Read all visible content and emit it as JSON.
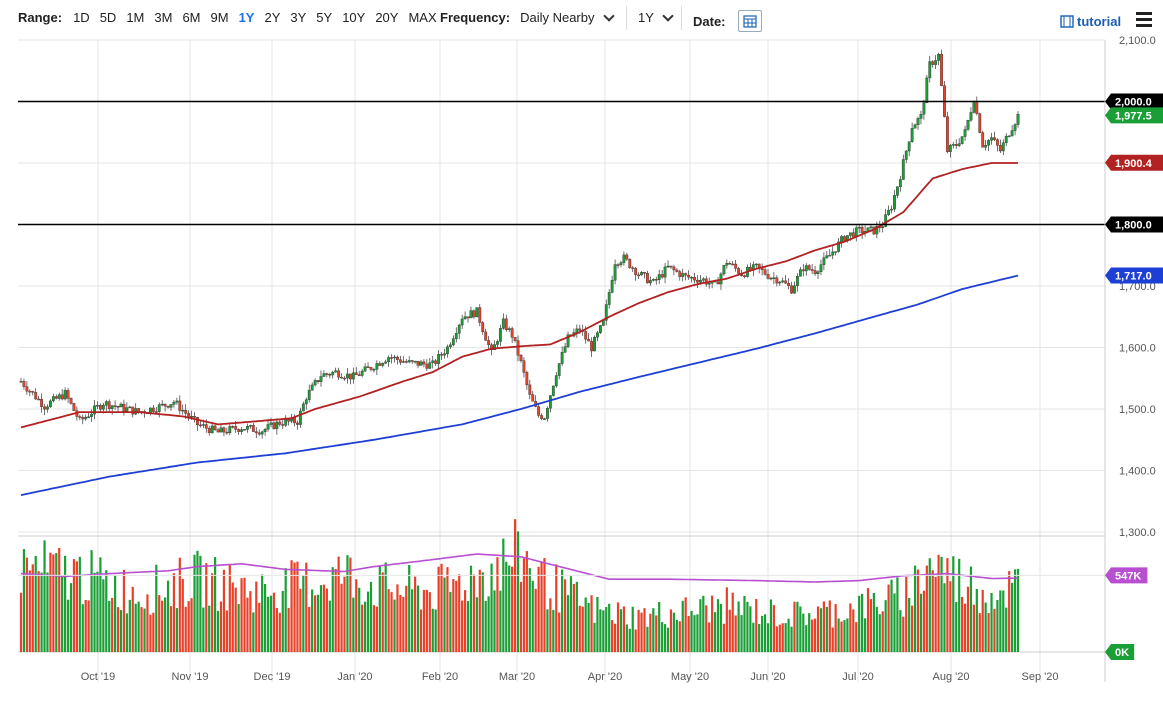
{
  "toolbar": {
    "range_label": "Range:",
    "ranges": [
      "1D",
      "5D",
      "1M",
      "3M",
      "6M",
      "9M",
      "1Y",
      "2Y",
      "3Y",
      "5Y",
      "10Y",
      "20Y",
      "MAX"
    ],
    "active_range": "1Y",
    "frequency_label": "Frequency:",
    "frequency_value": "Daily Nearby",
    "period_value": "1Y",
    "date_label": "Date:",
    "tutorial_label": "tutorial"
  },
  "colors": {
    "up": "#1a9e36",
    "down": "#e8412a",
    "ma_short": "#b22222",
    "ma_long": "#1e3fd6",
    "volume_avg": "#b84fd0",
    "level_line": "#000000"
  },
  "chart_data": [
    {
      "type": "candlestick",
      "title": "",
      "x_ticks": [
        "Oct '19",
        "Nov '19",
        "Dec '19",
        "Jan '20",
        "Feb '20",
        "Mar '20",
        "Apr '20",
        "May '20",
        "Jun '20",
        "Jul '20",
        "Aug '20",
        "Sep '20"
      ],
      "y_ticks": [
        2100,
        2000,
        1900,
        1800,
        1700,
        1600,
        1500,
        1400,
        1300
      ],
      "ylim": [
        1300,
        2100
      ],
      "horizontal_levels": [
        2000,
        1800
      ],
      "price_badges": [
        {
          "label": "2,000.0",
          "value": 2000,
          "color": "#000000"
        },
        {
          "label": "1,977.5",
          "value": 1977.5,
          "color": "#1a9e36"
        },
        {
          "label": "1,900.4",
          "value": 1900.4,
          "color": "#b22222"
        },
        {
          "label": "1,800.0",
          "value": 1800,
          "color": "#000000"
        },
        {
          "label": "1,717.0",
          "value": 1717,
          "color": "#1e3fd6"
        }
      ],
      "anchors": [
        [
          0,
          1545
        ],
        [
          8,
          1505
        ],
        [
          15,
          1525
        ],
        [
          20,
          1480
        ],
        [
          28,
          1510
        ],
        [
          40,
          1495
        ],
        [
          48,
          1505
        ],
        [
          52,
          1512
        ],
        [
          60,
          1475
        ],
        [
          67,
          1462
        ],
        [
          75,
          1470
        ],
        [
          82,
          1465
        ],
        [
          88,
          1478
        ],
        [
          94,
          1480
        ],
        [
          97,
          1520
        ],
        [
          102,
          1555
        ],
        [
          107,
          1560
        ],
        [
          113,
          1552
        ],
        [
          118,
          1565
        ],
        [
          125,
          1585
        ],
        [
          132,
          1575
        ],
        [
          140,
          1572
        ],
        [
          145,
          1600
        ],
        [
          150,
          1650
        ],
        [
          155,
          1658
        ],
        [
          160,
          1590
        ],
        [
          164,
          1640
        ],
        [
          167,
          1620
        ],
        [
          170,
          1575
        ],
        [
          173,
          1520
        ],
        [
          176,
          1490
        ],
        [
          178,
          1488
        ],
        [
          182,
          1560
        ],
        [
          186,
          1615
        ],
        [
          190,
          1630
        ],
        [
          194,
          1600
        ],
        [
          198,
          1640
        ],
        [
          200,
          1690
        ],
        [
          202,
          1740
        ],
        [
          205,
          1745
        ],
        [
          210,
          1720
        ],
        [
          215,
          1705
        ],
        [
          220,
          1730
        ],
        [
          226,
          1715
        ],
        [
          232,
          1710
        ],
        [
          236,
          1700
        ],
        [
          240,
          1740
        ],
        [
          245,
          1720
        ],
        [
          250,
          1730
        ],
        [
          255,
          1715
        ],
        [
          258,
          1710
        ],
        [
          262,
          1695
        ],
        [
          266,
          1730
        ],
        [
          270,
          1725
        ],
        [
          275,
          1750
        ],
        [
          280,
          1780
        ],
        [
          285,
          1790
        ],
        [
          290,
          1790
        ],
        [
          293,
          1800
        ],
        [
          296,
          1830
        ],
        [
          299,
          1880
        ],
        [
          303,
          1960
        ],
        [
          306,
          1975
        ],
        [
          309,
          2060
        ],
        [
          312,
          2075
        ],
        [
          315,
          1920
        ],
        [
          318,
          1930
        ],
        [
          321,
          1950
        ],
        [
          324,
          2005
        ],
        [
          327,
          1930
        ],
        [
          330,
          1940
        ],
        [
          333,
          1920
        ],
        [
          336,
          1950
        ],
        [
          339,
          1977
        ]
      ],
      "ma50_anchors": [
        [
          0,
          1470
        ],
        [
          20,
          1495
        ],
        [
          40,
          1495
        ],
        [
          55,
          1488
        ],
        [
          67,
          1475
        ],
        [
          80,
          1480
        ],
        [
          92,
          1485
        ],
        [
          100,
          1500
        ],
        [
          115,
          1520
        ],
        [
          130,
          1545
        ],
        [
          140,
          1560
        ],
        [
          150,
          1585
        ],
        [
          160,
          1598
        ],
        [
          170,
          1602
        ],
        [
          180,
          1605
        ],
        [
          190,
          1625
        ],
        [
          200,
          1650
        ],
        [
          210,
          1672
        ],
        [
          220,
          1690
        ],
        [
          230,
          1703
        ],
        [
          240,
          1712
        ],
        [
          250,
          1728
        ],
        [
          260,
          1740
        ],
        [
          270,
          1758
        ],
        [
          280,
          1772
        ],
        [
          290,
          1792
        ],
        [
          300,
          1820
        ],
        [
          310,
          1875
        ],
        [
          320,
          1890
        ],
        [
          330,
          1900
        ],
        [
          339,
          1900
        ]
      ],
      "ma200_anchors": [
        [
          0,
          1360
        ],
        [
          30,
          1390
        ],
        [
          60,
          1413
        ],
        [
          90,
          1428
        ],
        [
          120,
          1450
        ],
        [
          150,
          1475
        ],
        [
          170,
          1500
        ],
        [
          190,
          1528
        ],
        [
          210,
          1552
        ],
        [
          230,
          1575
        ],
        [
          250,
          1598
        ],
        [
          270,
          1623
        ],
        [
          290,
          1650
        ],
        [
          305,
          1670
        ],
        [
          320,
          1695
        ],
        [
          339,
          1717
        ]
      ]
    },
    {
      "type": "bar",
      "title": "",
      "y_ticks_labels": [
        "547K",
        "0K"
      ],
      "average_level": 547000,
      "peak_level": 800000,
      "vol_anchors": [
        [
          0,
          600
        ],
        [
          20,
          550
        ],
        [
          40,
          420
        ],
        [
          60,
          520
        ],
        [
          80,
          430
        ],
        [
          100,
          500
        ],
        [
          110,
          560
        ],
        [
          120,
          470
        ],
        [
          140,
          430
        ],
        [
          160,
          580
        ],
        [
          165,
          650
        ],
        [
          170,
          700
        ],
        [
          178,
          500
        ],
        [
          185,
          420
        ],
        [
          195,
          300
        ],
        [
          210,
          250
        ],
        [
          240,
          330
        ],
        [
          260,
          260
        ],
        [
          280,
          300
        ],
        [
          300,
          400
        ],
        [
          310,
          640
        ],
        [
          320,
          500
        ],
        [
          330,
          420
        ],
        [
          339,
          480
        ]
      ],
      "avg_anchors": [
        [
          0,
          560
        ],
        [
          15,
          540
        ],
        [
          30,
          560
        ],
        [
          50,
          580
        ],
        [
          60,
          610
        ],
        [
          75,
          630
        ],
        [
          90,
          590
        ],
        [
          110,
          575
        ],
        [
          120,
          610
        ],
        [
          140,
          660
        ],
        [
          155,
          700
        ],
        [
          170,
          680
        ],
        [
          185,
          600
        ],
        [
          200,
          520
        ],
        [
          220,
          520
        ],
        [
          250,
          510
        ],
        [
          270,
          500
        ],
        [
          285,
          510
        ],
        [
          300,
          545
        ],
        [
          315,
          560
        ],
        [
          330,
          525
        ],
        [
          339,
          528
        ]
      ]
    }
  ]
}
